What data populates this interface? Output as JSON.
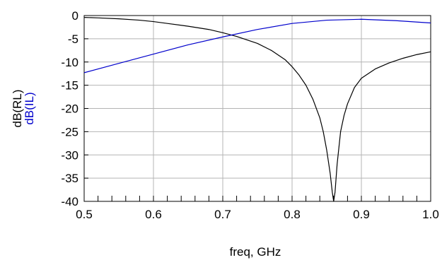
{
  "chart_data": {
    "type": "line",
    "title": "",
    "xlabel": "freq, GHz",
    "ylabels": [
      {
        "text": "dB(RL)",
        "color": "#000000"
      },
      {
        "text": "dB(IL)",
        "color": "#0000cc"
      }
    ],
    "xlim": [
      0.5,
      1.0
    ],
    "ylim": [
      -40,
      0
    ],
    "xticks": [
      0.5,
      0.6,
      0.7,
      0.8,
      0.9,
      1.0
    ],
    "xtick_labels": [
      "0.5",
      "0.6",
      "0.7",
      "0.8",
      "0.9",
      "1.0"
    ],
    "xminor_step": 0.02,
    "yticks": [
      0,
      -5,
      -10,
      -15,
      -20,
      -25,
      -30,
      -35,
      -40
    ],
    "ytick_labels": [
      "0",
      "-5",
      "-10",
      "-15",
      "-20",
      "-25",
      "-30",
      "-35",
      "-40"
    ],
    "grid": true,
    "series": [
      {
        "name": "dB(RL)",
        "color": "#000000",
        "x": [
          0.5,
          0.52,
          0.55,
          0.58,
          0.6,
          0.62,
          0.65,
          0.68,
          0.7,
          0.72,
          0.75,
          0.77,
          0.79,
          0.8,
          0.81,
          0.82,
          0.83,
          0.84,
          0.845,
          0.85,
          0.855,
          0.858,
          0.86,
          0.862,
          0.865,
          0.87,
          0.875,
          0.88,
          0.89,
          0.9,
          0.92,
          0.94,
          0.96,
          0.98,
          1.0
        ],
        "y": [
          -0.4,
          -0.5,
          -0.7,
          -1.0,
          -1.3,
          -1.7,
          -2.3,
          -3.0,
          -3.7,
          -4.5,
          -6.0,
          -7.5,
          -9.5,
          -11.0,
          -12.8,
          -15.0,
          -18.0,
          -22.0,
          -25.0,
          -29.0,
          -34.0,
          -38.0,
          -40.0,
          -38.0,
          -32.0,
          -25.0,
          -21.5,
          -19.0,
          -15.5,
          -13.5,
          -11.5,
          -10.2,
          -9.2,
          -8.4,
          -7.8
        ]
      },
      {
        "name": "dB(IL)",
        "color": "#0000cc",
        "x": [
          0.5,
          0.55,
          0.6,
          0.65,
          0.7,
          0.75,
          0.8,
          0.85,
          0.9,
          0.95,
          1.0
        ],
        "y": [
          -12.3,
          -10.3,
          -8.3,
          -6.3,
          -4.6,
          -3.0,
          -1.7,
          -1.0,
          -0.8,
          -1.1,
          -1.6
        ]
      }
    ]
  }
}
